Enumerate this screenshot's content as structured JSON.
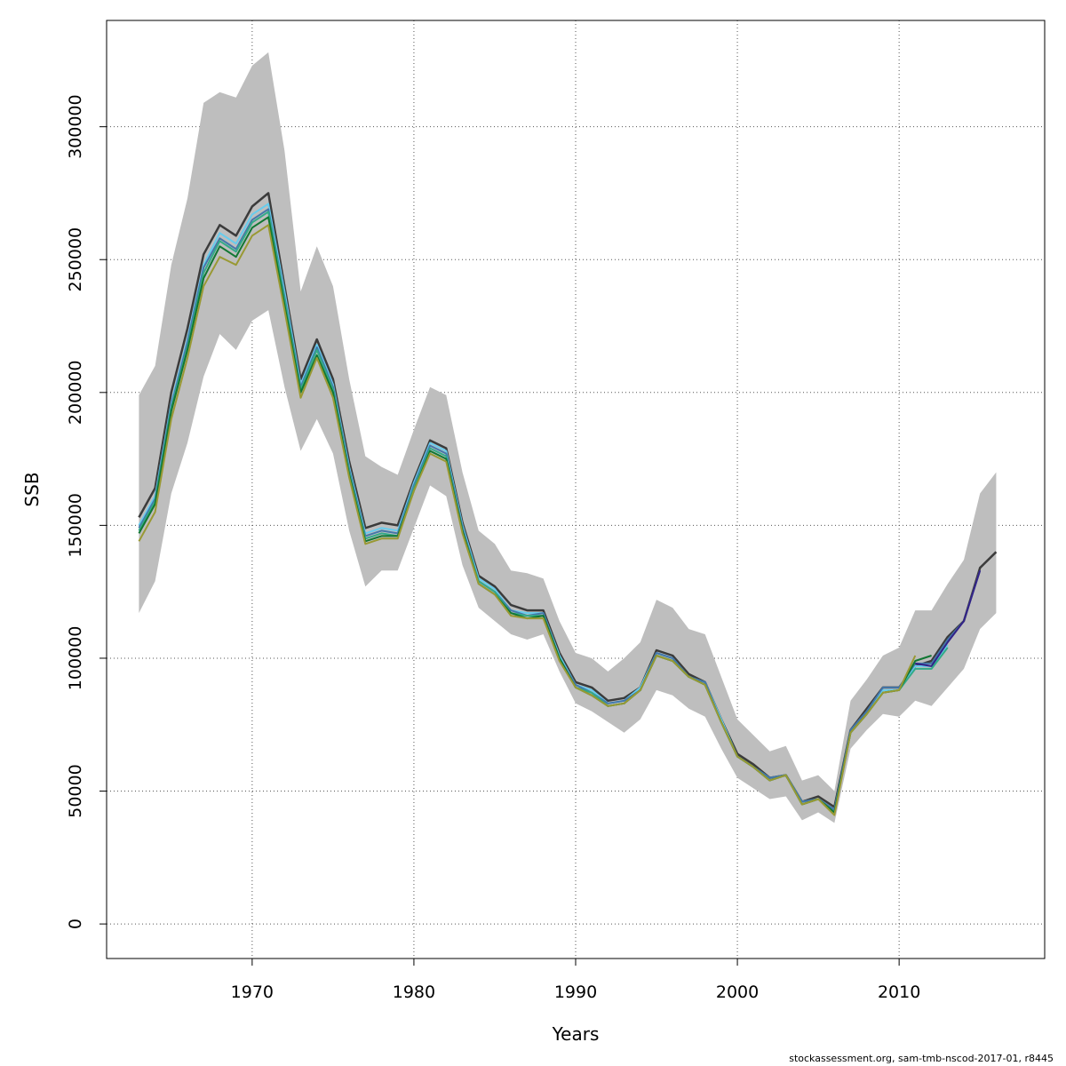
{
  "chart_data": {
    "type": "line",
    "title": "",
    "xlabel": "Years",
    "ylabel": "SSB",
    "xlim": [
      1961,
      2019
    ],
    "ylim": [
      -13000,
      340000
    ],
    "x_ticks": [
      1970,
      1980,
      1990,
      2000,
      2010
    ],
    "y_ticks": [
      0,
      50000,
      100000,
      150000,
      200000,
      250000,
      300000
    ],
    "grid": true,
    "band": {
      "color": "#bebebe",
      "x": [
        1963,
        1964,
        1965,
        1966,
        1967,
        1968,
        1969,
        1970,
        1971,
        1972,
        1973,
        1974,
        1975,
        1976,
        1977,
        1978,
        1979,
        1980,
        1981,
        1982,
        1983,
        1984,
        1985,
        1986,
        1987,
        1988,
        1989,
        1990,
        1991,
        1992,
        1993,
        1994,
        1995,
        1996,
        1997,
        1998,
        1999,
        2000,
        2001,
        2002,
        2003,
        2004,
        2005,
        2006,
        2007,
        2008,
        2009,
        2010,
        2011,
        2012,
        2013,
        2014,
        2015,
        2016
      ],
      "upper": [
        199000,
        210000,
        248000,
        273000,
        309000,
        313000,
        311000,
        323000,
        328000,
        291000,
        238000,
        255000,
        240000,
        205000,
        176000,
        172000,
        169000,
        186000,
        202000,
        199000,
        170000,
        148000,
        143000,
        133000,
        132000,
        130000,
        114000,
        102000,
        100000,
        95000,
        100000,
        106000,
        122000,
        119000,
        111000,
        109000,
        93000,
        77000,
        71000,
        65000,
        67000,
        54000,
        56000,
        50000,
        84000,
        92000,
        101000,
        104000,
        118000,
        118000,
        128000,
        137000,
        162000,
        170000
      ],
      "lower": [
        117000,
        129000,
        162000,
        181000,
        206000,
        222000,
        216000,
        227000,
        231000,
        202000,
        178000,
        190000,
        177000,
        148000,
        127000,
        133000,
        133000,
        149000,
        165000,
        161000,
        135000,
        119000,
        114000,
        109000,
        107000,
        109000,
        95000,
        83000,
        80000,
        76000,
        72000,
        77000,
        88000,
        86000,
        81000,
        78000,
        66000,
        55000,
        51000,
        47000,
        48000,
        39000,
        42000,
        38000,
        66000,
        73000,
        79000,
        78000,
        84000,
        82000,
        89000,
        96000,
        111000,
        117000
      ]
    },
    "series": [
      {
        "color": "#3b3b3b",
        "x": [
          1963,
          1964,
          1965,
          1966,
          1967,
          1968,
          1969,
          1970,
          1971,
          1972,
          1973,
          1974,
          1975,
          1976,
          1977,
          1978,
          1979,
          1980,
          1981,
          1982,
          1983,
          1984,
          1985,
          1986,
          1987,
          1988,
          1989,
          1990,
          1991,
          1992,
          1993,
          1994,
          1995,
          1996,
          1997,
          1998,
          1999,
          2000,
          2001,
          2002,
          2003,
          2004,
          2005,
          2006,
          2007,
          2008,
          2009,
          2010,
          2011,
          2012,
          2013,
          2014,
          2015,
          2016
        ],
        "values": [
          153000,
          164000,
          200000,
          224000,
          252000,
          263000,
          259000,
          270000,
          275000,
          240000,
          205000,
          220000,
          205000,
          174000,
          149000,
          151000,
          150000,
          167000,
          182000,
          179000,
          151000,
          131000,
          127000,
          120000,
          118000,
          118000,
          102000,
          91000,
          89000,
          84000,
          85000,
          89000,
          103000,
          101000,
          94000,
          91000,
          77000,
          64000,
          60000,
          55000,
          56000,
          46000,
          48000,
          44000,
          73000,
          81000,
          89000,
          89000,
          97000,
          99000,
          108000,
          114000,
          134000,
          140000
        ]
      },
      {
        "color": "#66ccee",
        "x": [
          1963,
          1964,
          1965,
          1966,
          1967,
          1968,
          1969,
          1970,
          1971,
          1972,
          1973,
          1974,
          1975,
          1976,
          1977,
          1978,
          1979,
          1980,
          1981,
          1982,
          1983,
          1984,
          1985,
          1986,
          1987,
          1988,
          1989,
          1990,
          1991,
          1992,
          1993,
          1994,
          1995,
          1996,
          1997,
          1998,
          1999,
          2000,
          2001,
          2002,
          2003,
          2004,
          2005,
          2006,
          2007,
          2008,
          2009,
          2010,
          2011,
          2012,
          2013
        ],
        "values": [
          150000,
          161000,
          196000,
          220000,
          248000,
          260000,
          256000,
          267000,
          271000,
          238000,
          203000,
          218000,
          203000,
          172000,
          147000,
          149000,
          148000,
          166000,
          181000,
          178000,
          150000,
          130000,
          126000,
          118000,
          117000,
          117000,
          101000,
          90000,
          88000,
          83000,
          84000,
          89000,
          102000,
          100000,
          93000,
          91000,
          77000,
          63000,
          59000,
          55000,
          56000,
          46000,
          47000,
          43000,
          72000,
          80000,
          88000,
          88000,
          97000,
          97000,
          105000
        ]
      },
      {
        "color": "#4477aa",
        "x": [
          1963,
          1964,
          1965,
          1966,
          1967,
          1968,
          1969,
          1970,
          1971,
          1972,
          1973,
          1974,
          1975,
          1976,
          1977,
          1978,
          1979,
          1980,
          1981,
          1982,
          1983,
          1984,
          1985,
          1986,
          1987,
          1988,
          1989,
          1990,
          1991,
          1992,
          1993,
          1994,
          1995,
          1996,
          1997,
          1998,
          1999,
          2000,
          2001,
          2002,
          2003,
          2004,
          2005,
          2006,
          2007,
          2008,
          2009,
          2010,
          2011,
          2012,
          2013,
          2014,
          2015
        ],
        "values": [
          149000,
          160000,
          195000,
          219000,
          247000,
          258000,
          254000,
          265000,
          269000,
          236000,
          202000,
          217000,
          202000,
          171000,
          146000,
          148000,
          147000,
          165000,
          180000,
          177000,
          149000,
          129000,
          125000,
          118000,
          116000,
          117000,
          100000,
          90000,
          87000,
          83000,
          84000,
          88000,
          102000,
          100000,
          93000,
          91000,
          76000,
          63000,
          59000,
          55000,
          56000,
          46000,
          47000,
          43000,
          73000,
          80000,
          89000,
          89000,
          98000,
          98000,
          107000,
          114000,
          133000
        ]
      },
      {
        "color": "#332288",
        "x": [
          2011,
          2012,
          2013,
          2014,
          2015
        ],
        "values": [
          98000,
          97000,
          106000,
          114000,
          133000
        ]
      },
      {
        "color": "#33aa88",
        "x": [
          1963,
          1964,
          1965,
          1966,
          1967,
          1968,
          1969,
          1970,
          1971,
          1972,
          1973,
          1974,
          1975,
          1976,
          1977,
          1978,
          1979,
          1980,
          1981,
          1982,
          1983,
          1984,
          1985,
          1986,
          1987,
          1988,
          1989,
          1990,
          1991,
          1992,
          1993,
          1994,
          1995,
          1996,
          1997,
          1998,
          1999,
          2000,
          2001,
          2002,
          2003,
          2004,
          2005,
          2006,
          2007,
          2008,
          2009,
          2010,
          2011,
          2012,
          2013
        ],
        "values": [
          148000,
          159000,
          194000,
          217000,
          245000,
          257000,
          253000,
          264000,
          268000,
          235000,
          201000,
          216000,
          201000,
          170000,
          145000,
          147000,
          146000,
          164000,
          179000,
          176000,
          148000,
          129000,
          125000,
          117000,
          116000,
          116000,
          100000,
          89000,
          87000,
          82000,
          83000,
          88000,
          101000,
          99000,
          93000,
          90000,
          76000,
          63000,
          59000,
          54000,
          56000,
          45000,
          47000,
          42000,
          72000,
          79000,
          87000,
          88000,
          96000,
          96000,
          104000
        ]
      },
      {
        "color": "#117733",
        "x": [
          1963,
          1964,
          1965,
          1966,
          1967,
          1968,
          1969,
          1970,
          1971,
          1972,
          1973,
          1974,
          1975,
          1976,
          1977,
          1978,
          1979,
          1980,
          1981,
          1982,
          1983,
          1984,
          1985,
          1986,
          1987,
          1988,
          1989,
          1990,
          1991,
          1992,
          1993,
          1994,
          1995,
          1996,
          1997,
          1998,
          1999,
          2000,
          2001,
          2002,
          2003,
          2004,
          2005,
          2006,
          2007,
          2008,
          2009,
          2010,
          2011,
          2012
        ],
        "values": [
          147000,
          158000,
          193000,
          216000,
          243000,
          255000,
          251000,
          262000,
          266000,
          233000,
          200000,
          214000,
          200000,
          169000,
          144000,
          146000,
          146000,
          163000,
          178000,
          175000,
          148000,
          128000,
          124000,
          117000,
          115000,
          116000,
          100000,
          89000,
          86000,
          82000,
          83000,
          88000,
          101000,
          99000,
          93000,
          90000,
          76000,
          63000,
          59000,
          54000,
          56000,
          45000,
          47000,
          42000,
          72000,
          79000,
          87000,
          88000,
          99000,
          101000
        ]
      },
      {
        "color": "#999933",
        "x": [
          1963,
          1964,
          1965,
          1966,
          1967,
          1968,
          1969,
          1970,
          1971,
          1972,
          1973,
          1974,
          1975,
          1976,
          1977,
          1978,
          1979,
          1980,
          1981,
          1982,
          1983,
          1984,
          1985,
          1986,
          1987,
          1988,
          1989,
          1990,
          1991,
          1992,
          1993,
          1994,
          1995,
          1996,
          1997,
          1998,
          1999,
          2000,
          2001,
          2002,
          2003,
          2004,
          2005,
          2006,
          2007,
          2008,
          2009,
          2010,
          2011
        ],
        "values": [
          144000,
          155000,
          190000,
          213000,
          240000,
          251000,
          248000,
          259000,
          263000,
          231000,
          198000,
          213000,
          198000,
          168000,
          143000,
          145000,
          145000,
          163000,
          177000,
          174000,
          147000,
          128000,
          124000,
          116000,
          115000,
          115000,
          99000,
          89000,
          86000,
          82000,
          83000,
          88000,
          101000,
          99000,
          93000,
          90000,
          76000,
          63000,
          59000,
          54000,
          56000,
          45000,
          47000,
          41000,
          72000,
          79000,
          87000,
          88000,
          101000
        ]
      }
    ]
  },
  "footer": "stockassessment.org, sam-tmb-nscod-2017-01, r8445"
}
